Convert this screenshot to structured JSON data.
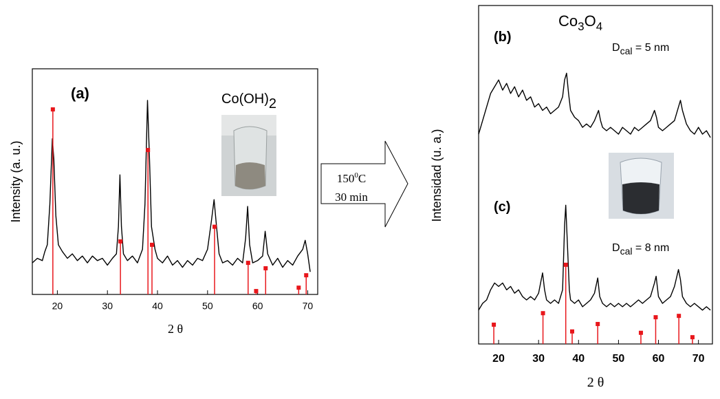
{
  "chart_data": [
    {
      "type": "line",
      "ylabel": "Intensity (a. u.)",
      "xlabel": "2 θ",
      "xlim": [
        15,
        72
      ],
      "ylim": [
        0,
        100
      ],
      "xticks": [
        20,
        30,
        40,
        50,
        60,
        70
      ],
      "annotations": {
        "label": "(a)",
        "formula": [
          "Co(OH)",
          "2"
        ]
      },
      "series": [
        {
          "color": "#000000",
          "x": [
            15,
            16,
            17,
            17.5,
            18,
            18.5,
            19,
            19.3,
            19.7,
            20.2,
            21,
            22,
            23,
            24,
            25,
            26,
            27,
            28,
            29,
            30,
            31,
            31.8,
            32.2,
            32.5,
            32.8,
            33.2,
            34,
            35,
            36,
            37,
            37.5,
            38,
            38.4,
            38.8,
            39.5,
            40,
            41,
            42,
            43,
            44,
            45,
            46,
            47,
            48,
            49,
            50,
            50.8,
            51.3,
            51.8,
            52.3,
            53,
            54,
            55,
            56,
            57,
            57.6,
            58,
            58.4,
            59,
            60,
            61,
            61.5,
            62,
            63,
            64,
            65,
            66,
            67,
            68,
            69,
            69.5,
            70,
            70.5
          ],
          "values": [
            14,
            16,
            15,
            19,
            22,
            40,
            69,
            60,
            35,
            22,
            19,
            16,
            18,
            15,
            17,
            14,
            17,
            15,
            16,
            13,
            16,
            18,
            30,
            53,
            30,
            18,
            15,
            17,
            14,
            20,
            40,
            86,
            60,
            30,
            20,
            16,
            14,
            17,
            13,
            15,
            12,
            15,
            13,
            16,
            15,
            20,
            33,
            42,
            30,
            18,
            14,
            15,
            13,
            16,
            14,
            25,
            39,
            22,
            14,
            15,
            17,
            28,
            18,
            13,
            16,
            12,
            15,
            13,
            17,
            20,
            24,
            18,
            10
          ]
        },
        {
          "type": "stem",
          "color": "#e8161b",
          "x": [
            19.1,
            32.6,
            38.1,
            38.9,
            51.4,
            58.1,
            59.7,
            61.6,
            68.2,
            69.7
          ],
          "values": [
            82,
            23.5,
            64,
            22,
            30,
            14,
            1.5,
            11.6,
            3,
            8.5
          ]
        }
      ]
    },
    {
      "type": "line",
      "ylabel": "Intensidad (u. a.)",
      "xlabel": "2 θ",
      "xlim": [
        15,
        73.5
      ],
      "ylim": [
        0,
        100
      ],
      "xticks": [
        20,
        30,
        40,
        50,
        60,
        70
      ],
      "annotations": {
        "formula": [
          "Co",
          "3",
          "O",
          "4"
        ],
        "label_b": "(b)",
        "size_b": [
          "D",
          "cal",
          " = 5 nm"
        ],
        "label_c": "(c)",
        "size_c": [
          "D",
          "cal",
          " = 8 nm"
        ]
      },
      "series": [
        {
          "color": "#000000",
          "x": [
            15,
            16,
            17,
            18,
            19,
            20,
            21,
            22,
            23,
            24,
            25,
            26,
            27,
            28,
            29,
            30,
            31,
            32,
            33,
            34,
            35,
            36,
            36.5,
            37,
            37.5,
            38,
            39,
            40,
            41,
            42,
            43,
            44,
            45,
            45.5,
            46,
            47,
            48,
            49,
            50,
            51,
            52,
            53,
            54,
            55,
            56,
            57,
            58,
            59,
            59.5,
            60,
            61,
            62,
            63,
            64,
            65,
            65.5,
            66,
            67,
            68,
            69,
            70,
            71,
            72,
            73
          ],
          "values": [
            62,
            66,
            70,
            74,
            76,
            78,
            75,
            77,
            74,
            76,
            73,
            75,
            72,
            73,
            70,
            71,
            69,
            70,
            68,
            69,
            70,
            73,
            78,
            80,
            74,
            69,
            67,
            66,
            64,
            65,
            64,
            66,
            69,
            66,
            64,
            63,
            64,
            63,
            62,
            64,
            63,
            62,
            64,
            63,
            64,
            65,
            66,
            69,
            67,
            64,
            63,
            64,
            65,
            66,
            70,
            72,
            69,
            65,
            63,
            62,
            64,
            62,
            63,
            61
          ]
        },
        {
          "color": "#000000",
          "x": [
            15,
            16,
            17,
            18,
            19,
            20,
            21,
            22,
            23,
            24,
            25,
            26,
            27,
            28,
            29,
            30,
            30.5,
            31,
            31.5,
            32,
            33,
            34,
            35,
            36,
            36.5,
            36.8,
            37.2,
            37.7,
            38,
            39,
            40,
            41,
            42,
            43,
            44,
            44.8,
            45.3,
            46,
            47,
            48,
            49,
            50,
            51,
            52,
            53,
            54,
            55,
            56,
            57,
            58,
            59,
            59.4,
            60,
            61,
            62,
            63,
            64,
            65,
            65.5,
            66,
            67,
            68,
            69,
            70,
            71,
            72,
            73
          ],
          "values": [
            10,
            12,
            13,
            16,
            18,
            17,
            18,
            16,
            17,
            15,
            16,
            14,
            13,
            14,
            13,
            15,
            18,
            21,
            16,
            13,
            12,
            13,
            12,
            16,
            35,
            41,
            30,
            16,
            13,
            12,
            13,
            11,
            12,
            13,
            15,
            19.5,
            14,
            12,
            11,
            12,
            11,
            12,
            11,
            12,
            11,
            12,
            13,
            12,
            13,
            14,
            18,
            20,
            14,
            12,
            13,
            14,
            17,
            22,
            19,
            14,
            12,
            11,
            12,
            11,
            10,
            11,
            10
          ]
        },
        {
          "type": "stem",
          "color": "#e8161b",
          "x": [
            18.8,
            31.1,
            36.8,
            38.4,
            44.8,
            55.6,
            59.3,
            65.1,
            68.5
          ],
          "values": [
            5.7,
            9.1,
            23.4,
            3.7,
            5.9,
            3.3,
            7.9,
            8.3,
            2
          ]
        }
      ]
    }
  ],
  "arrow": {
    "line1": [
      "150",
      "0",
      "C"
    ],
    "line2": "30 min"
  }
}
